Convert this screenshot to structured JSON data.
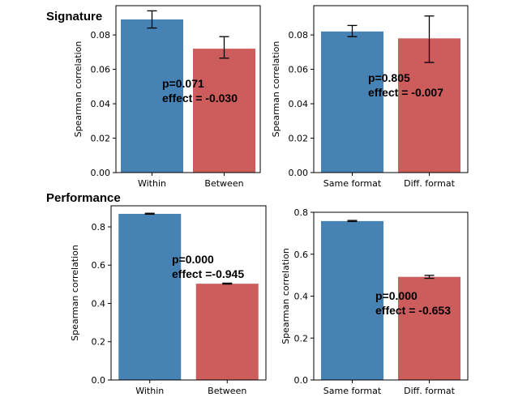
{
  "colors": {
    "within": "#4682b4",
    "between": "#cd5c5c",
    "axis": "#000000",
    "errorbar": "#000000"
  },
  "sections": {
    "signature": "Signature",
    "performance": "Performance"
  },
  "chart_data": [
    {
      "type": "bar",
      "section": "Signature",
      "categories": [
        "Within",
        "Between"
      ],
      "values": [
        0.089,
        0.072
      ],
      "errors_low": [
        0.084,
        0.0665
      ],
      "errors_high": [
        0.094,
        0.079
      ],
      "ylim": [
        0,
        0.097
      ],
      "yticks": [
        0.0,
        0.02,
        0.04,
        0.06,
        0.08
      ],
      "ytick_labels": [
        "0.00",
        "0.02",
        "0.04",
        "0.06",
        "0.08"
      ],
      "ylabel": "Spearman correlation",
      "xlabel": "",
      "annotation": [
        "p=0.071",
        "effect = -0.030"
      ],
      "legend": "none",
      "grid": false
    },
    {
      "type": "bar",
      "section": "Signature",
      "categories": [
        "Same format",
        "Diff. format"
      ],
      "values": [
        0.082,
        0.078
      ],
      "errors_low": [
        0.079,
        0.064
      ],
      "errors_high": [
        0.0855,
        0.091
      ],
      "ylim": [
        0,
        0.097
      ],
      "yticks": [
        0.0,
        0.02,
        0.04,
        0.06,
        0.08
      ],
      "ytick_labels": [
        "0.00",
        "0.02",
        "0.04",
        "0.06",
        "0.08"
      ],
      "ylabel": "Spearman correlation",
      "xlabel": "",
      "annotation": [
        "p=0.805",
        "effect = -0.007"
      ],
      "legend": "none",
      "grid": false
    },
    {
      "type": "bar",
      "section": "Performance",
      "categories": [
        "Within",
        "Between"
      ],
      "values": [
        0.868,
        0.503
      ],
      "errors_low": [
        0.866,
        0.501
      ],
      "errors_high": [
        0.871,
        0.506
      ],
      "ylim": [
        0,
        0.91
      ],
      "yticks": [
        0.0,
        0.2,
        0.4,
        0.6,
        0.8
      ],
      "ytick_labels": [
        "0.0",
        "0.2",
        "0.4",
        "0.6",
        "0.8"
      ],
      "ylabel": "Spearman correlation",
      "xlabel": "",
      "annotation": [
        "p=0.000",
        "effect =-0.945"
      ],
      "legend": "none",
      "grid": false
    },
    {
      "type": "bar",
      "section": "Performance",
      "categories": [
        "Same format",
        "Diff. format"
      ],
      "values": [
        0.758,
        0.492
      ],
      "errors_low": [
        0.756,
        0.485
      ],
      "errors_high": [
        0.761,
        0.499
      ],
      "ylim": [
        0,
        0.8
      ],
      "yticks": [
        0.0,
        0.2,
        0.4,
        0.6,
        0.8
      ],
      "ytick_labels": [
        "0.0",
        "0.2",
        "0.4",
        "0.6",
        "0.8"
      ],
      "ylabel": "Spearman correlation",
      "xlabel": "",
      "annotation": [
        "p=0.000",
        "effect = -0.653"
      ],
      "legend": "none",
      "grid": false
    }
  ]
}
